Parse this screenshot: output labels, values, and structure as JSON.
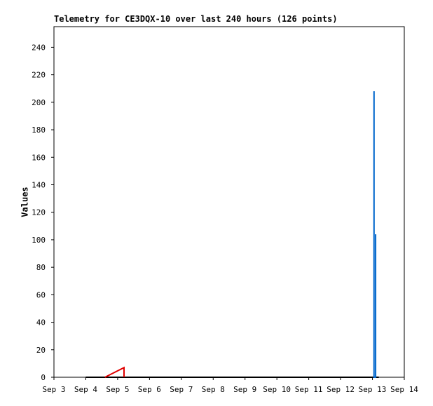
{
  "chart_data": {
    "type": "line",
    "title": "Telemetry for CE3DQX-10 over last 240 hours (126 points)",
    "y_label": "Values",
    "xlim": [
      3,
      14
    ],
    "xticks": [
      {
        "value": 3,
        "label": "Sep 3"
      },
      {
        "value": 4,
        "label": "Sep 4"
      },
      {
        "value": 5,
        "label": "Sep 5"
      },
      {
        "value": 6,
        "label": "Sep 6"
      },
      {
        "value": 7,
        "label": "Sep 7"
      },
      {
        "value": 8,
        "label": "Sep 8"
      },
      {
        "value": 9,
        "label": "Sep 9"
      },
      {
        "value": 10,
        "label": "Sep 10"
      },
      {
        "value": 11,
        "label": "Sep 11"
      },
      {
        "value": 12,
        "label": "Sep 12"
      },
      {
        "value": 13,
        "label": "Sep 13"
      },
      {
        "value": 14,
        "label": "Sep 14"
      }
    ],
    "ylim": [
      0,
      255
    ],
    "yticks": [
      0,
      20,
      40,
      60,
      80,
      100,
      120,
      140,
      160,
      180,
      200,
      220,
      240
    ],
    "grid": false,
    "series": [
      {
        "color": "#000000",
        "x": [
          4,
          13.2
        ],
        "values": [
          0,
          0
        ]
      },
      {
        "color": "#e00000",
        "x": [
          4.6,
          5.2,
          5.2
        ],
        "values": [
          0,
          7,
          0
        ]
      },
      {
        "color": "#0066cc",
        "x": [
          13.05,
          13.05,
          13.05,
          13.1,
          13.1,
          13.1
        ],
        "values": [
          0,
          208,
          0,
          0,
          104,
          0
        ]
      }
    ]
  }
}
